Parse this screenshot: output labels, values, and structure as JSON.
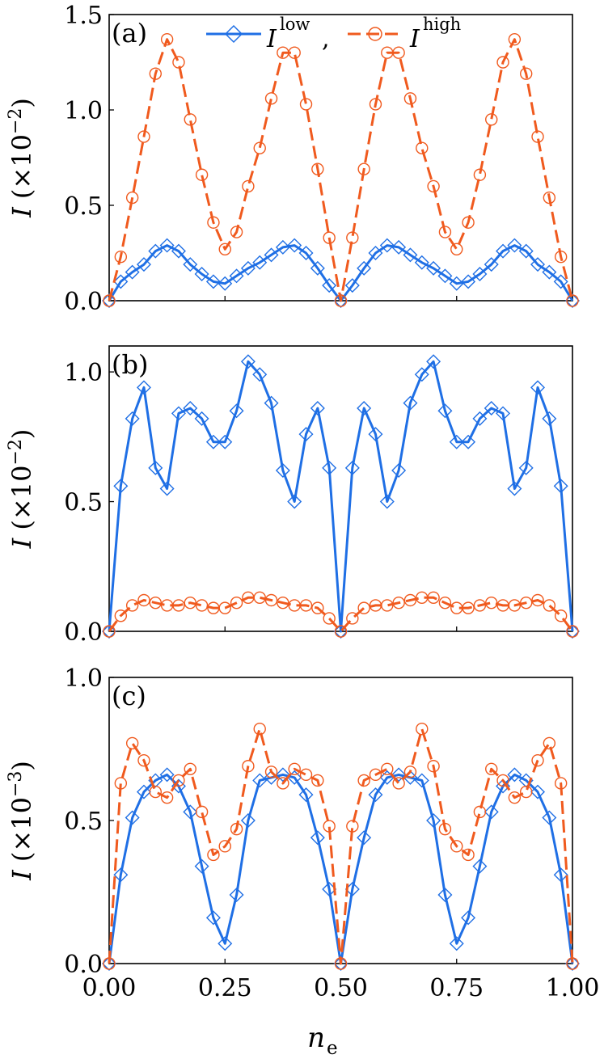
{
  "figure": {
    "xlabel_main": "n",
    "xlabel_sub": "e",
    "legend": {
      "low_base": "I",
      "low_sup": "low",
      "separator": ",",
      "high_base": "I",
      "high_sup": "high"
    },
    "colors": {
      "low": "#1f6fe5",
      "high": "#f05a1e"
    }
  },
  "chart_data": [
    {
      "panel_label": "(a)",
      "type": "line",
      "ylabel_var": "I",
      "ylabel_scale": "(×10",
      "ylabel_exp": "−2",
      "ylabel_close": ")",
      "xlim": [
        0,
        1
      ],
      "ylim": [
        0,
        1.5
      ],
      "x_ticks": [
        0,
        0.25,
        0.5,
        0.75,
        1.0
      ],
      "y_ticks": [
        0.0,
        0.5,
        1.0,
        1.5
      ],
      "y_tick_labels": [
        "0.0",
        "0.5",
        "1.0",
        "1.5"
      ],
      "series": [
        {
          "key": "low",
          "marker": "diamond",
          "dash": "solid",
          "x": [
            0,
            0.025,
            0.05,
            0.075,
            0.1,
            0.125,
            0.15,
            0.175,
            0.2,
            0.225,
            0.25,
            0.275,
            0.3,
            0.325,
            0.35,
            0.375,
            0.4,
            0.425,
            0.45,
            0.475,
            0.5,
            0.525,
            0.55,
            0.575,
            0.6,
            0.625,
            0.65,
            0.675,
            0.7,
            0.725,
            0.75,
            0.775,
            0.8,
            0.825,
            0.85,
            0.875,
            0.9,
            0.925,
            0.95,
            0.975,
            1.0
          ],
          "values": [
            0,
            0.1,
            0.15,
            0.19,
            0.26,
            0.29,
            0.26,
            0.19,
            0.14,
            0.1,
            0.09,
            0.13,
            0.17,
            0.2,
            0.24,
            0.28,
            0.29,
            0.25,
            0.17,
            0.08,
            0,
            0.08,
            0.17,
            0.25,
            0.29,
            0.28,
            0.24,
            0.2,
            0.17,
            0.13,
            0.09,
            0.1,
            0.14,
            0.19,
            0.26,
            0.29,
            0.26,
            0.19,
            0.15,
            0.1,
            0
          ]
        },
        {
          "key": "high",
          "marker": "circle",
          "dash": "dashed",
          "x": [
            0,
            0.025,
            0.05,
            0.075,
            0.1,
            0.125,
            0.15,
            0.175,
            0.2,
            0.225,
            0.25,
            0.275,
            0.3,
            0.325,
            0.35,
            0.375,
            0.4,
            0.425,
            0.45,
            0.475,
            0.5,
            0.525,
            0.55,
            0.575,
            0.6,
            0.625,
            0.65,
            0.675,
            0.7,
            0.725,
            0.75,
            0.775,
            0.8,
            0.825,
            0.85,
            0.875,
            0.9,
            0.925,
            0.95,
            0.975,
            1.0
          ],
          "values": [
            0,
            0.23,
            0.54,
            0.86,
            1.19,
            1.37,
            1.25,
            0.95,
            0.66,
            0.41,
            0.27,
            0.36,
            0.6,
            0.8,
            1.06,
            1.3,
            1.3,
            1.03,
            0.69,
            0.33,
            0,
            0.33,
            0.69,
            1.03,
            1.3,
            1.3,
            1.06,
            0.8,
            0.6,
            0.36,
            0.27,
            0.41,
            0.66,
            0.95,
            1.25,
            1.37,
            1.19,
            0.86,
            0.54,
            0.23,
            0
          ]
        }
      ]
    },
    {
      "panel_label": "(b)",
      "type": "line",
      "ylabel_var": "I",
      "ylabel_scale": "(×10",
      "ylabel_exp": "−2",
      "ylabel_close": ")",
      "xlim": [
        0,
        1
      ],
      "ylim": [
        0,
        1.1
      ],
      "x_ticks": [
        0,
        0.25,
        0.5,
        0.75,
        1.0
      ],
      "y_ticks": [
        0.0,
        0.5,
        1.0
      ],
      "y_tick_labels": [
        "0.0",
        "0.5",
        "1.0"
      ],
      "series": [
        {
          "key": "low",
          "marker": "diamond",
          "dash": "solid",
          "x": [
            0,
            0.025,
            0.05,
            0.075,
            0.1,
            0.125,
            0.15,
            0.175,
            0.2,
            0.225,
            0.25,
            0.275,
            0.3,
            0.325,
            0.35,
            0.375,
            0.4,
            0.425,
            0.45,
            0.475,
            0.5,
            0.525,
            0.55,
            0.575,
            0.6,
            0.625,
            0.65,
            0.675,
            0.7,
            0.725,
            0.75,
            0.775,
            0.8,
            0.825,
            0.85,
            0.875,
            0.9,
            0.925,
            0.95,
            0.975,
            1.0
          ],
          "values": [
            0,
            0.56,
            0.82,
            0.94,
            0.63,
            0.55,
            0.84,
            0.86,
            0.82,
            0.73,
            0.73,
            0.85,
            1.04,
            0.99,
            0.88,
            0.62,
            0.5,
            0.76,
            0.86,
            0.63,
            0,
            0.63,
            0.86,
            0.76,
            0.5,
            0.62,
            0.88,
            0.99,
            1.04,
            0.85,
            0.73,
            0.73,
            0.82,
            0.86,
            0.84,
            0.55,
            0.63,
            0.94,
            0.82,
            0.56,
            0
          ]
        },
        {
          "key": "high",
          "marker": "circle",
          "dash": "dashed",
          "x": [
            0,
            0.025,
            0.05,
            0.075,
            0.1,
            0.125,
            0.15,
            0.175,
            0.2,
            0.225,
            0.25,
            0.275,
            0.3,
            0.325,
            0.35,
            0.375,
            0.4,
            0.425,
            0.45,
            0.475,
            0.5,
            0.525,
            0.55,
            0.575,
            0.6,
            0.625,
            0.65,
            0.675,
            0.7,
            0.725,
            0.75,
            0.775,
            0.8,
            0.825,
            0.85,
            0.875,
            0.9,
            0.925,
            0.95,
            0.975,
            1.0
          ],
          "values": [
            0,
            0.06,
            0.1,
            0.12,
            0.11,
            0.1,
            0.1,
            0.11,
            0.1,
            0.09,
            0.09,
            0.11,
            0.13,
            0.13,
            0.12,
            0.11,
            0.1,
            0.1,
            0.09,
            0.05,
            0,
            0.05,
            0.09,
            0.1,
            0.1,
            0.11,
            0.12,
            0.13,
            0.13,
            0.11,
            0.09,
            0.09,
            0.1,
            0.11,
            0.1,
            0.1,
            0.11,
            0.12,
            0.1,
            0.06,
            0
          ]
        }
      ]
    },
    {
      "panel_label": "(c)",
      "type": "line",
      "ylabel_var": "I",
      "ylabel_scale": "(×10",
      "ylabel_exp": "−3",
      "ylabel_close": ")",
      "xlim": [
        0,
        1
      ],
      "ylim": [
        0,
        1.0
      ],
      "x_ticks": [
        0,
        0.25,
        0.5,
        0.75,
        1.0
      ],
      "x_tick_labels": [
        "0.00",
        "0.25",
        "0.50",
        "0.75",
        "1.00"
      ],
      "y_ticks": [
        0.0,
        0.5,
        1.0
      ],
      "y_tick_labels": [
        "0.0",
        "0.5",
        "1.0"
      ],
      "series": [
        {
          "key": "low",
          "marker": "diamond",
          "dash": "solid",
          "x": [
            0,
            0.025,
            0.05,
            0.075,
            0.1,
            0.125,
            0.15,
            0.175,
            0.2,
            0.225,
            0.25,
            0.275,
            0.3,
            0.325,
            0.35,
            0.375,
            0.4,
            0.425,
            0.45,
            0.475,
            0.5,
            0.525,
            0.55,
            0.575,
            0.6,
            0.625,
            0.65,
            0.675,
            0.7,
            0.725,
            0.75,
            0.775,
            0.8,
            0.825,
            0.85,
            0.875,
            0.9,
            0.925,
            0.95,
            0.975,
            1.0
          ],
          "values": [
            0,
            0.31,
            0.51,
            0.6,
            0.64,
            0.66,
            0.62,
            0.53,
            0.34,
            0.16,
            0.07,
            0.24,
            0.5,
            0.64,
            0.65,
            0.66,
            0.65,
            0.59,
            0.44,
            0.26,
            0,
            0.26,
            0.44,
            0.59,
            0.65,
            0.66,
            0.65,
            0.64,
            0.5,
            0.24,
            0.07,
            0.16,
            0.34,
            0.53,
            0.62,
            0.66,
            0.64,
            0.6,
            0.51,
            0.31,
            0
          ]
        },
        {
          "key": "high",
          "marker": "circle",
          "dash": "dashed",
          "x": [
            0,
            0.025,
            0.05,
            0.075,
            0.1,
            0.125,
            0.15,
            0.175,
            0.2,
            0.225,
            0.25,
            0.275,
            0.3,
            0.325,
            0.35,
            0.375,
            0.4,
            0.425,
            0.45,
            0.475,
            0.5,
            0.525,
            0.55,
            0.575,
            0.6,
            0.625,
            0.65,
            0.675,
            0.7,
            0.725,
            0.75,
            0.775,
            0.8,
            0.825,
            0.85,
            0.875,
            0.9,
            0.925,
            0.95,
            0.975,
            1.0
          ],
          "values": [
            0,
            0.63,
            0.77,
            0.71,
            0.6,
            0.58,
            0.64,
            0.68,
            0.53,
            0.38,
            0.41,
            0.47,
            0.69,
            0.82,
            0.67,
            0.63,
            0.68,
            0.66,
            0.64,
            0.48,
            0,
            0.48,
            0.64,
            0.66,
            0.68,
            0.63,
            0.67,
            0.82,
            0.69,
            0.47,
            0.41,
            0.38,
            0.53,
            0.68,
            0.64,
            0.58,
            0.6,
            0.71,
            0.77,
            0.63,
            0
          ]
        }
      ]
    }
  ]
}
